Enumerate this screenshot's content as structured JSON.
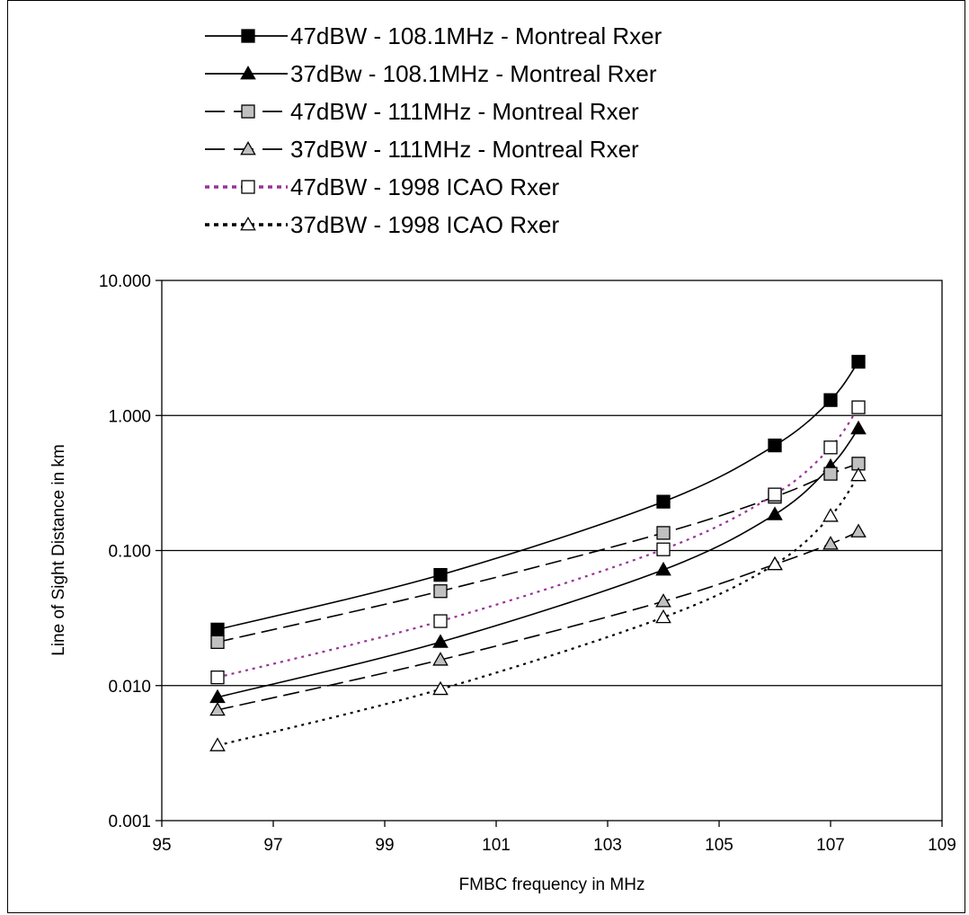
{
  "chart_data": {
    "type": "line",
    "title": "",
    "xlabel": "FMBC frequency in MHz",
    "ylabel": "Line of Sight Distance in km",
    "xlim": [
      95,
      109
    ],
    "ylim": [
      0.001,
      10
    ],
    "y_scale": "log",
    "x_ticks": [
      "95",
      "97",
      "99",
      "101",
      "103",
      "105",
      "107",
      "109"
    ],
    "y_ticks": [
      "0.001",
      "0.010",
      "0.100",
      "1.000",
      "10.000"
    ],
    "grid": "horizontal major lines",
    "legend_position": "top",
    "series": [
      {
        "name": "47dBW - 108.1MHz - Montreal Rxer",
        "line_style": "solid",
        "marker": "square",
        "marker_fill": "#000000",
        "color": "#000000",
        "points": [
          [
            96,
            0.026
          ],
          [
            100,
            0.066
          ],
          [
            104,
            0.23
          ],
          [
            106,
            0.6
          ],
          [
            107,
            1.3
          ],
          [
            107.5,
            2.5
          ]
        ]
      },
      {
        "name": "37dBw - 108.1MHz - Montreal Rxer",
        "line_style": "solid",
        "marker": "triangle",
        "marker_fill": "#000000",
        "color": "#000000",
        "points": [
          [
            96,
            0.0082
          ],
          [
            100,
            0.021
          ],
          [
            104,
            0.072
          ],
          [
            106,
            0.185
          ],
          [
            107,
            0.42
          ],
          [
            107.5,
            0.8
          ]
        ]
      },
      {
        "name": "47dBW - 111MHz - Montreal Rxer",
        "line_style": "dashed",
        "marker": "square",
        "marker_fill": "#c0c0c0",
        "color": "#000000",
        "points": [
          [
            96,
            0.021
          ],
          [
            100,
            0.05
          ],
          [
            104,
            0.135
          ],
          [
            106,
            0.25
          ],
          [
            107,
            0.37
          ],
          [
            107.5,
            0.44
          ]
        ]
      },
      {
        "name": "37dBW - 111MHz - Montreal Rxer",
        "line_style": "dashed",
        "marker": "triangle",
        "marker_fill": "#c0c0c0",
        "color": "#000000",
        "points": [
          [
            96,
            0.0066
          ],
          [
            100,
            0.0155
          ],
          [
            104,
            0.042
          ],
          [
            106,
            0.079
          ],
          [
            107,
            0.112
          ],
          [
            107.5,
            0.138
          ]
        ]
      },
      {
        "name": "47dBW - 1998 ICAO Rxer",
        "line_style": "dotted",
        "marker": "square",
        "marker_fill": "#ffffff",
        "color": "#993399",
        "points": [
          [
            96,
            0.0115
          ],
          [
            100,
            0.03
          ],
          [
            104,
            0.102
          ],
          [
            106,
            0.26
          ],
          [
            107,
            0.58
          ],
          [
            107.5,
            1.15
          ]
        ]
      },
      {
        "name": "37dBW - 1998 ICAO Rxer",
        "line_style": "dotted",
        "marker": "triangle",
        "marker_fill": "#ffffff",
        "color": "#000000",
        "points": [
          [
            96,
            0.0036
          ],
          [
            100,
            0.0094
          ],
          [
            104,
            0.032
          ],
          [
            106,
            0.079
          ],
          [
            107,
            0.18
          ],
          [
            107.5,
            0.36
          ]
        ]
      }
    ]
  }
}
